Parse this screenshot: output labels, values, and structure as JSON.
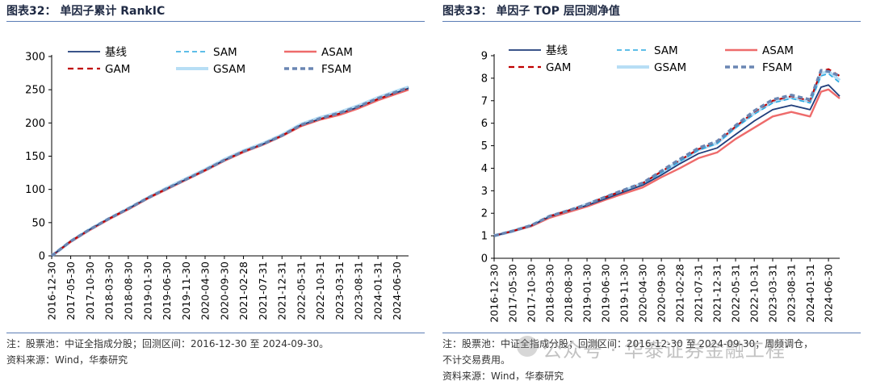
{
  "left": {
    "title": "图表32：  单因子累计 RankIC",
    "note_lines": [
      "注：股票池：中证全指成分股；回测区间：2016-12-30 至 2024-09-30。",
      "资料来源：Wind，华泰研究"
    ]
  },
  "right": {
    "title": "图表33：  单因子 TOP 层回测净值",
    "note_lines": [
      "注：股票池：中证全指成分股；回测区间：2016-12-30 至 2024-09-30；周频调仓，",
      "不计交易费用。",
      "资料来源：Wind，华泰研究"
    ]
  },
  "watermark": "公众号 · 华泰证券金融工程",
  "colors": {
    "base": "#1f3d7a",
    "sam": "#29a8e0",
    "asam": "#ee6b6b",
    "gam": "#c00000",
    "gsam": "#b7def5",
    "fsam": "#6a86b3",
    "rule": "#5b7db5"
  },
  "chart_data": [
    {
      "type": "line",
      "title": "单因子累计 RankIC",
      "ylim": [
        0,
        300
      ],
      "yticks": [
        "0",
        "50",
        "100",
        "150",
        "200",
        "250",
        "300"
      ],
      "x_tick_labels": [
        "2016-12-30",
        "2017-05-30",
        "2017-10-30",
        "2018-03-30",
        "2018-08-30",
        "2019-01-30",
        "2019-06-30",
        "2019-11-30",
        "2020-04-30",
        "2020-09-30",
        "2021-02-28",
        "2021-07-31",
        "2021-12-31",
        "2022-05-31",
        "2022-10-31",
        "2023-03-31",
        "2023-08-31",
        "2024-01-31",
        "2024-06-30"
      ],
      "legend": [
        "基线",
        "SAM",
        "ASAM",
        "GAM",
        "GSAM",
        "FSAM"
      ],
      "grid": false,
      "x": [
        "2016-12-30",
        "2017-05-30",
        "2017-10-30",
        "2018-03-30",
        "2018-08-30",
        "2019-01-30",
        "2019-06-30",
        "2019-11-30",
        "2020-04-30",
        "2020-09-30",
        "2021-02-28",
        "2021-07-31",
        "2021-12-31",
        "2022-05-31",
        "2022-10-31",
        "2023-03-31",
        "2023-08-31",
        "2024-01-31",
        "2024-06-30",
        "2024-09-30"
      ],
      "series": [
        {
          "name": "基线",
          "key": "base",
          "values": [
            0,
            22,
            40,
            56,
            71,
            87,
            101,
            115,
            129,
            144,
            157,
            168,
            181,
            197,
            206,
            214,
            224,
            236,
            246,
            252
          ]
        },
        {
          "name": "SAM",
          "key": "sam",
          "values": [
            0,
            22,
            40,
            56,
            71,
            87,
            101,
            115,
            129,
            144,
            157,
            168,
            181,
            197,
            207,
            215,
            225,
            237,
            247,
            253
          ]
        },
        {
          "name": "ASAM",
          "key": "asam",
          "values": [
            0,
            21,
            39,
            55,
            70,
            86,
            100,
            114,
            128,
            143,
            156,
            167,
            180,
            195,
            205,
            212,
            222,
            234,
            244,
            250
          ]
        },
        {
          "name": "GAM",
          "key": "gam",
          "values": [
            0,
            22,
            40,
            56,
            71,
            87,
            101,
            115,
            129,
            144,
            157,
            168,
            181,
            196,
            206,
            214,
            224,
            236,
            246,
            252
          ]
        },
        {
          "name": "GSAM",
          "key": "gsam",
          "values": [
            0,
            22,
            40,
            56,
            71,
            87,
            102,
            116,
            130,
            145,
            158,
            169,
            182,
            198,
            208,
            216,
            226,
            238,
            248,
            254
          ]
        },
        {
          "name": "FSAM",
          "key": "fsam",
          "values": [
            0,
            22,
            40,
            56,
            71,
            87,
            101,
            115,
            129,
            144,
            157,
            168,
            181,
            197,
            207,
            215,
            225,
            237,
            247,
            253
          ]
        }
      ]
    },
    {
      "type": "line",
      "title": "单因子 TOP 层回测净值",
      "ylim": [
        0,
        9
      ],
      "yticks": [
        "0",
        "1",
        "2",
        "3",
        "4",
        "5",
        "6",
        "7",
        "8",
        "9"
      ],
      "x_tick_labels": [
        "2016-12-30",
        "2017-05-30",
        "2017-10-30",
        "2018-03-30",
        "2018-08-30",
        "2019-01-30",
        "2019-06-30",
        "2019-11-30",
        "2020-04-30",
        "2020-09-30",
        "2021-02-28",
        "2021-07-31",
        "2021-12-31",
        "2022-05-31",
        "2022-10-31",
        "2023-03-31",
        "2023-08-31",
        "2024-01-31",
        "2024-06-30"
      ],
      "legend": [
        "基线",
        "SAM",
        "ASAM",
        "GAM",
        "GSAM",
        "FSAM"
      ],
      "grid": false,
      "x": [
        "2016-12-30",
        "2017-05-30",
        "2017-10-30",
        "2018-03-30",
        "2018-08-30",
        "2019-01-30",
        "2019-06-30",
        "2019-11-30",
        "2020-04-30",
        "2020-09-30",
        "2021-02-28",
        "2021-07-31",
        "2021-12-31",
        "2022-05-31",
        "2022-10-31",
        "2023-03-31",
        "2023-08-31",
        "2024-01-31",
        "2024-04-30",
        "2024-06-30",
        "2024-09-30"
      ],
      "series": [
        {
          "name": "基线",
          "key": "base",
          "values": [
            1.0,
            1.2,
            1.45,
            1.85,
            2.1,
            2.35,
            2.65,
            2.95,
            3.25,
            3.7,
            4.2,
            4.65,
            4.9,
            5.5,
            6.1,
            6.6,
            6.8,
            6.6,
            7.6,
            7.7,
            7.2
          ]
        },
        {
          "name": "SAM",
          "key": "sam",
          "values": [
            1.0,
            1.2,
            1.45,
            1.85,
            2.1,
            2.38,
            2.7,
            3.0,
            3.3,
            3.8,
            4.3,
            4.8,
            5.1,
            5.8,
            6.4,
            6.9,
            7.1,
            6.9,
            8.1,
            8.2,
            7.8
          ]
        },
        {
          "name": "ASAM",
          "key": "asam",
          "values": [
            1.0,
            1.2,
            1.42,
            1.8,
            2.05,
            2.3,
            2.6,
            2.88,
            3.15,
            3.6,
            4.0,
            4.45,
            4.7,
            5.3,
            5.8,
            6.3,
            6.5,
            6.3,
            7.4,
            7.5,
            7.1
          ]
        },
        {
          "name": "GAM",
          "key": "gam",
          "values": [
            1.0,
            1.21,
            1.46,
            1.87,
            2.12,
            2.4,
            2.72,
            3.02,
            3.33,
            3.85,
            4.35,
            4.85,
            5.15,
            5.85,
            6.5,
            7.0,
            7.2,
            7.0,
            8.3,
            8.4,
            8.1
          ]
        },
        {
          "name": "GSAM",
          "key": "gsam",
          "values": [
            1.0,
            1.21,
            1.46,
            1.86,
            2.11,
            2.39,
            2.71,
            3.01,
            3.32,
            3.82,
            4.32,
            4.82,
            5.12,
            5.82,
            6.45,
            6.95,
            7.15,
            6.95,
            8.2,
            8.3,
            7.9
          ]
        },
        {
          "name": "FSAM",
          "key": "fsam",
          "values": [
            1.0,
            1.21,
            1.46,
            1.87,
            2.12,
            2.4,
            2.73,
            3.04,
            3.35,
            3.88,
            4.4,
            4.9,
            5.2,
            5.9,
            6.55,
            7.05,
            7.25,
            7.05,
            8.35,
            8.3,
            8.1
          ]
        }
      ]
    }
  ]
}
